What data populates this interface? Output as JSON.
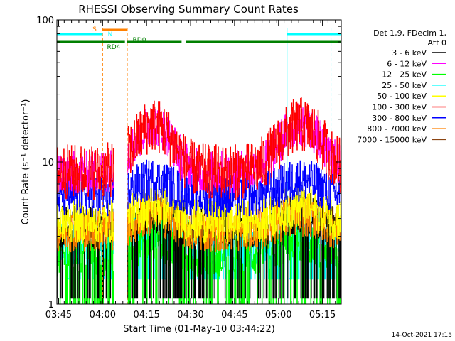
{
  "chart_data": {
    "type": "line",
    "title": "RHESSI Observing Summary Count Rates",
    "xlabel": "Start Time (01-May-10 03:44:22)",
    "ylabel": "Count Rate (s⁻¹ detector⁻¹)",
    "yscale": "log",
    "ylim": [
      1,
      100
    ],
    "xlim_minutes": [
      0,
      97
    ],
    "x_ticks": [
      {
        "minute": 0.6,
        "label": "03:45"
      },
      {
        "minute": 15.6,
        "label": "04:00"
      },
      {
        "minute": 30.6,
        "label": "04:15"
      },
      {
        "minute": 45.6,
        "label": "04:30"
      },
      {
        "minute": 60.6,
        "label": "04:45"
      },
      {
        "minute": 75.6,
        "label": "05:00"
      },
      {
        "minute": 90.6,
        "label": "05:15"
      }
    ],
    "y_ticks": [
      {
        "value": 1,
        "label": "1"
      },
      {
        "value": 10,
        "label": "10"
      },
      {
        "value": 100,
        "label": "100"
      }
    ],
    "legend_header": [
      "Det 1,9, FDecim 1,",
      "Att 0"
    ],
    "legend_position": "right",
    "series": [
      {
        "name": "3 - 6 keV",
        "color": "#000000",
        "level": 3.5,
        "lows": 1.1
      },
      {
        "name": "6 - 12 keV",
        "color": "#ff00ff",
        "level": 8.5
      },
      {
        "name": "12 - 25 keV",
        "color": "#00ff00",
        "level": 2.2,
        "lows": 1.0
      },
      {
        "name": "25 - 50 keV",
        "color": "#00ffff",
        "level": 2.7,
        "lows": 1.5
      },
      {
        "name": "50 - 100 keV",
        "color": "#ffff00",
        "level": 3.8
      },
      {
        "name": "100 - 300 keV",
        "color": "#ff0000",
        "level": 8.5
      },
      {
        "name": "300 - 800 keV",
        "color": "#0000ff",
        "level": 5.8
      },
      {
        "name": "800 - 7000 keV",
        "color": "#ff8000",
        "level": 3.3
      },
      {
        "name": "7000 - 15000 keV",
        "color": "#8b4513",
        "level": 7.0
      }
    ],
    "data_gaps_minutes": [
      [
        19.4,
        24.0
      ]
    ],
    "flag_bars": [
      {
        "label": "S",
        "color": "#ff8000",
        "segments": [
          [
            15.6,
            24.0
          ]
        ],
        "level": 1
      },
      {
        "label": "N",
        "color": "#00ffff",
        "segments": [
          [
            0,
            15.6
          ],
          [
            78.5,
            97
          ]
        ],
        "level": 2
      },
      {
        "label": "RD4",
        "color": "#008000",
        "segments": [
          [
            0,
            23.2
          ],
          [
            24.0,
            42.5
          ]
        ],
        "level": 3
      },
      {
        "label": "RD0",
        "color": "#008000",
        "segments": [
          [
            24.0,
            42.5
          ],
          [
            44.0,
            97
          ]
        ],
        "level": 4
      }
    ],
    "vertical_markers_minutes": [
      {
        "minute": 15.6,
        "color": "#ff8000",
        "style": "dashed"
      },
      {
        "minute": 24.0,
        "color": "#ff8000",
        "style": "dashed"
      },
      {
        "minute": 78.5,
        "color": "#00ffff",
        "style": "solid"
      },
      {
        "minute": 93.5,
        "color": "#00ffff",
        "style": "dashed"
      }
    ],
    "footer_timestamp": "14-Oct-2021 17:15"
  }
}
